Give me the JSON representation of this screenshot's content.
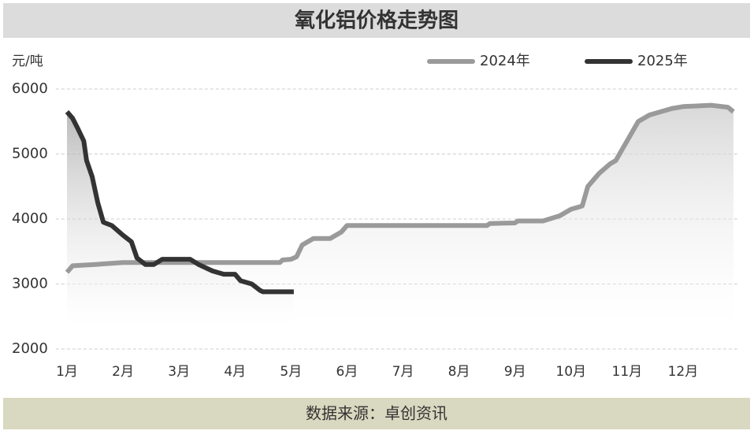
{
  "chart_data": {
    "type": "line",
    "title": "氧化铝价格走势图",
    "y_label": "元/吨",
    "source": "数据来源：卓创资讯",
    "xlim": [
      0.8,
      13
    ],
    "ylim": [
      2000,
      6000
    ],
    "xticks": [
      {
        "value": 1,
        "label": "1月"
      },
      {
        "value": 2,
        "label": "2月"
      },
      {
        "value": 3,
        "label": "3月"
      },
      {
        "value": 4,
        "label": "4月"
      },
      {
        "value": 5,
        "label": "5月"
      },
      {
        "value": 6,
        "label": "6月"
      },
      {
        "value": 7,
        "label": "7月"
      },
      {
        "value": 8,
        "label": "8月"
      },
      {
        "value": 9,
        "label": "9月"
      },
      {
        "value": 10,
        "label": "10月"
      },
      {
        "value": 11,
        "label": "11月"
      },
      {
        "value": 12,
        "label": "12月"
      }
    ],
    "yticks": [
      2000,
      3000,
      4000,
      5000,
      6000
    ],
    "grid": true,
    "series": [
      {
        "name": "2024年",
        "color": "#9a9a9a",
        "x": [
          1,
          1.1,
          1.5,
          2,
          3,
          4,
          4.8,
          4.85,
          5,
          5.1,
          5.2,
          5.4,
          5.7,
          5.9,
          6,
          7,
          8,
          8.5,
          8.55,
          9,
          9.05,
          9.5,
          9.8,
          10,
          10.2,
          10.3,
          10.5,
          10.7,
          10.8,
          11,
          11.2,
          11.4,
          11.6,
          11.8,
          12,
          12.5,
          12.8,
          12.9
        ],
        "values": [
          3180,
          3280,
          3300,
          3330,
          3330,
          3330,
          3330,
          3370,
          3380,
          3420,
          3600,
          3700,
          3700,
          3800,
          3900,
          3900,
          3900,
          3900,
          3930,
          3940,
          3970,
          3970,
          4050,
          4150,
          4200,
          4500,
          4700,
          4850,
          4900,
          5200,
          5500,
          5600,
          5650,
          5700,
          5730,
          5750,
          5720,
          5650
        ]
      },
      {
        "name": "2025年",
        "color": "#333333",
        "x": [
          1,
          1.1,
          1.2,
          1.3,
          1.35,
          1.45,
          1.55,
          1.65,
          1.8,
          2,
          2.15,
          2.25,
          2.4,
          2.55,
          2.7,
          3,
          3.2,
          3.35,
          3.6,
          3.8,
          4,
          4.1,
          4.3,
          4.45,
          4.5,
          5,
          5.05
        ],
        "values": [
          5650,
          5550,
          5380,
          5200,
          4900,
          4650,
          4250,
          3950,
          3900,
          3750,
          3650,
          3400,
          3300,
          3300,
          3380,
          3380,
          3380,
          3300,
          3200,
          3150,
          3150,
          3050,
          3000,
          2900,
          2880,
          2880,
          2880
        ]
      }
    ]
  }
}
